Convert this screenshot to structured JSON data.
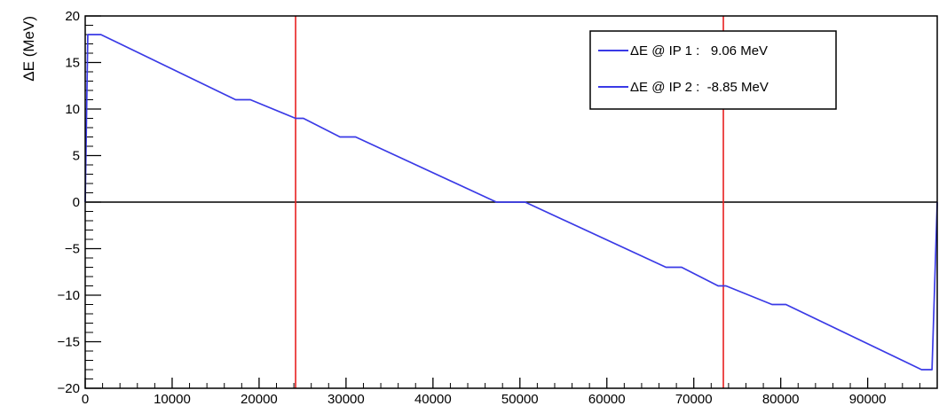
{
  "chart_data": {
    "type": "line",
    "title": "",
    "xlabel": "",
    "ylabel": "ΔE (MeV)",
    "xlim": [
      0,
      98000
    ],
    "ylim": [
      -20,
      20
    ],
    "x_ticks": [
      0,
      10000,
      20000,
      30000,
      40000,
      50000,
      60000,
      70000,
      80000,
      90000
    ],
    "x_tick_labels": [
      "0",
      "10000",
      "20000",
      "30000",
      "40000",
      "50000",
      "60000",
      "70000",
      "80000",
      "90000"
    ],
    "y_ticks": [
      -20,
      -15,
      -10,
      -5,
      0,
      5,
      10,
      15,
      20
    ],
    "y_tick_labels": [
      "−20",
      "−15",
      "−10",
      "−5",
      "0",
      "5",
      "10",
      "15",
      "20"
    ],
    "grid": false,
    "legend_position": "top-right",
    "colors": {
      "series": "#3a3ae6",
      "vertical_markers": "#e82020",
      "zero_line": "#000000"
    },
    "series": [
      {
        "name": "ΔE",
        "x": [
          0,
          300,
          1000,
          1800,
          17300,
          19000,
          24200,
          25100,
          29300,
          31100,
          47300,
          50600,
          66800,
          68600,
          72800,
          73700,
          79000,
          80600,
          96200,
          97400,
          98000
        ],
        "y": [
          0,
          18.0,
          18.0,
          18.0,
          11.0,
          11.0,
          9.0,
          9.0,
          7.0,
          7.0,
          0.0,
          0.0,
          -7.0,
          -7.0,
          -9.0,
          -9.0,
          -11.0,
          -11.0,
          -18.0,
          -18.0,
          0.0
        ]
      }
    ],
    "vertical_lines": [
      24200,
      73400
    ],
    "horizontal_lines": [
      0
    ],
    "legend": [
      {
        "label": "ΔE @ IP 1 :   9.06 MeV"
      },
      {
        "label": "ΔE @ IP 2 :  -8.85 MeV"
      }
    ]
  }
}
